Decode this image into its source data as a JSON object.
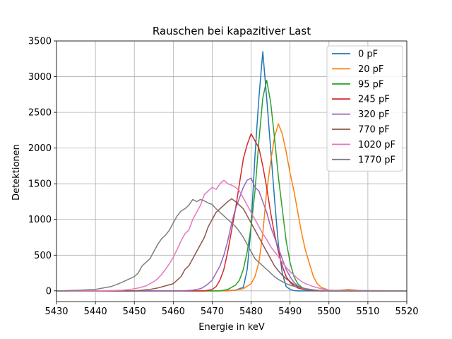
{
  "chart_data": {
    "type": "line",
    "title": "Rauschen bei kapazitiver Last",
    "xlabel": "Energie in keV",
    "ylabel": "Detektionen",
    "xlim": [
      5430,
      5520
    ],
    "ylim": [
      -150,
      3500
    ],
    "xticks": [
      5430,
      5440,
      5450,
      5460,
      5470,
      5480,
      5490,
      5500,
      5510,
      5520
    ],
    "yticks": [
      0,
      500,
      1000,
      1500,
      2000,
      2500,
      3000,
      3500
    ],
    "grid": true,
    "legend_position": "top-right",
    "series": [
      {
        "name": "0 pF",
        "color": "#1f77b4",
        "x": [
          5430,
          5470,
          5474,
          5476,
          5478,
          5479,
          5480,
          5481,
          5482,
          5483,
          5484,
          5485,
          5486,
          5487,
          5488,
          5489,
          5490,
          5491,
          5492,
          5495,
          5520
        ],
        "y": [
          0,
          0,
          5,
          10,
          50,
          300,
          900,
          1900,
          2700,
          3350,
          2700,
          2000,
          1300,
          650,
          250,
          60,
          20,
          5,
          0,
          0,
          0
        ]
      },
      {
        "name": "20 pF",
        "color": "#ff7f0e",
        "x": [
          5430,
          5474,
          5476,
          5478,
          5480,
          5481,
          5482,
          5483,
          5484,
          5485,
          5486,
          5487,
          5488,
          5489,
          5490,
          5491,
          5492,
          5493,
          5494,
          5495,
          5496,
          5497,
          5498,
          5499,
          5500,
          5502,
          5505,
          5507,
          5509,
          5520
        ],
        "y": [
          0,
          0,
          10,
          30,
          100,
          200,
          400,
          800,
          1400,
          1800,
          2150,
          2340,
          2200,
          1950,
          1650,
          1400,
          1100,
          800,
          560,
          380,
          200,
          100,
          50,
          30,
          10,
          5,
          20,
          10,
          0,
          0
        ]
      },
      {
        "name": "95 pF",
        "color": "#2ca02c",
        "x": [
          5430,
          5472,
          5474,
          5476,
          5477,
          5478,
          5479,
          5480,
          5481,
          5482,
          5483,
          5484,
          5485,
          5486,
          5487,
          5488,
          5489,
          5490,
          5491,
          5492,
          5493,
          5494,
          5496,
          5498,
          5520
        ],
        "y": [
          0,
          0,
          20,
          80,
          150,
          300,
          550,
          900,
          1400,
          2100,
          2700,
          2950,
          2650,
          2150,
          1600,
          1150,
          700,
          400,
          200,
          100,
          50,
          20,
          5,
          0,
          0
        ]
      },
      {
        "name": "245 pF",
        "color": "#d62728",
        "x": [
          5430,
          5468,
          5470,
          5471,
          5472,
          5473,
          5474,
          5475,
          5476,
          5477,
          5478,
          5479,
          5480,
          5481,
          5482,
          5483,
          5484,
          5485,
          5486,
          5487,
          5488,
          5489,
          5490,
          5491,
          5492,
          5493,
          5494,
          5496,
          5498,
          5520
        ],
        "y": [
          0,
          0,
          20,
          60,
          150,
          300,
          550,
          850,
          1150,
          1500,
          1850,
          2050,
          2200,
          2100,
          2000,
          1750,
          1450,
          1100,
          800,
          550,
          350,
          200,
          120,
          70,
          40,
          25,
          15,
          5,
          0,
          0
        ]
      },
      {
        "name": "320 pF",
        "color": "#9467bd",
        "x": [
          5430,
          5462,
          5465,
          5467,
          5468,
          5469,
          5470,
          5471,
          5472,
          5473,
          5474,
          5475,
          5476,
          5477,
          5478,
          5479,
          5480,
          5481,
          5482,
          5483,
          5484,
          5485,
          5486,
          5487,
          5488,
          5489,
          5490,
          5491,
          5492,
          5493,
          5494,
          5496,
          5500,
          5520
        ],
        "y": [
          0,
          0,
          10,
          30,
          60,
          100,
          150,
          250,
          350,
          500,
          700,
          950,
          1150,
          1300,
          1450,
          1550,
          1580,
          1450,
          1400,
          1250,
          1100,
          900,
          750,
          600,
          450,
          300,
          200,
          120,
          70,
          40,
          20,
          10,
          0,
          0
        ]
      },
      {
        "name": "770 pF",
        "color": "#8c564b",
        "x": [
          5430,
          5450,
          5452,
          5454,
          5456,
          5458,
          5460,
          5461,
          5462,
          5463,
          5464,
          5465,
          5466,
          5467,
          5468,
          5469,
          5470,
          5471,
          5472,
          5473,
          5474,
          5475,
          5476,
          5477,
          5478,
          5479,
          5480,
          5481,
          5482,
          5483,
          5484,
          5485,
          5486,
          5487,
          5488,
          5489,
          5490,
          5491,
          5492,
          5494,
          5496,
          5500,
          5520
        ],
        "y": [
          0,
          0,
          10,
          20,
          40,
          70,
          100,
          150,
          200,
          300,
          350,
          450,
          550,
          650,
          750,
          900,
          1000,
          1100,
          1150,
          1200,
          1250,
          1290,
          1250,
          1200,
          1150,
          1050,
          950,
          850,
          750,
          650,
          550,
          450,
          350,
          280,
          220,
          170,
          130,
          90,
          60,
          30,
          10,
          0,
          0
        ]
      },
      {
        "name": "1020 pF",
        "color": "#e377c2",
        "x": [
          5430,
          5440,
          5444,
          5447,
          5449,
          5451,
          5453,
          5454,
          5455,
          5456,
          5457,
          5458,
          5459,
          5460,
          5461,
          5462,
          5463,
          5464,
          5465,
          5466,
          5467,
          5468,
          5469,
          5470,
          5471,
          5472,
          5473,
          5474,
          5475,
          5476,
          5477,
          5478,
          5479,
          5480,
          5481,
          5482,
          5483,
          5484,
          5485,
          5486,
          5487,
          5488,
          5489,
          5490,
          5491,
          5492,
          5493,
          5494,
          5496,
          5498,
          5500,
          5520
        ],
        "y": [
          0,
          0,
          5,
          10,
          20,
          40,
          70,
          100,
          130,
          170,
          230,
          300,
          380,
          470,
          580,
          700,
          800,
          850,
          1000,
          1100,
          1200,
          1350,
          1400,
          1450,
          1420,
          1500,
          1550,
          1500,
          1480,
          1450,
          1400,
          1300,
          1200,
          1100,
          1000,
          900,
          800,
          720,
          620,
          550,
          480,
          400,
          330,
          270,
          220,
          170,
          130,
          100,
          60,
          30,
          10,
          0
        ]
      },
      {
        "name": "1770 pF",
        "color": "#7f7f7f",
        "x": [
          5430,
          5436,
          5440,
          5442,
          5444,
          5446,
          5448,
          5450,
          5451,
          5452,
          5453,
          5454,
          5455,
          5456,
          5457,
          5458,
          5459,
          5460,
          5461,
          5462,
          5463,
          5464,
          5465,
          5466,
          5467,
          5468,
          5469,
          5470,
          5471,
          5472,
          5473,
          5474,
          5475,
          5476,
          5477,
          5478,
          5479,
          5480,
          5481,
          5482,
          5483,
          5484,
          5485,
          5486,
          5487,
          5488,
          5489,
          5490,
          5492,
          5494,
          5496,
          5498,
          5500,
          5520
        ],
        "y": [
          0,
          10,
          20,
          40,
          60,
          100,
          150,
          200,
          250,
          350,
          400,
          450,
          550,
          650,
          730,
          780,
          850,
          950,
          1050,
          1120,
          1150,
          1200,
          1280,
          1250,
          1280,
          1260,
          1230,
          1210,
          1150,
          1100,
          1050,
          1000,
          950,
          900,
          830,
          750,
          650,
          550,
          450,
          400,
          350,
          300,
          250,
          200,
          160,
          130,
          100,
          80,
          50,
          30,
          15,
          5,
          0,
          0
        ]
      }
    ]
  }
}
